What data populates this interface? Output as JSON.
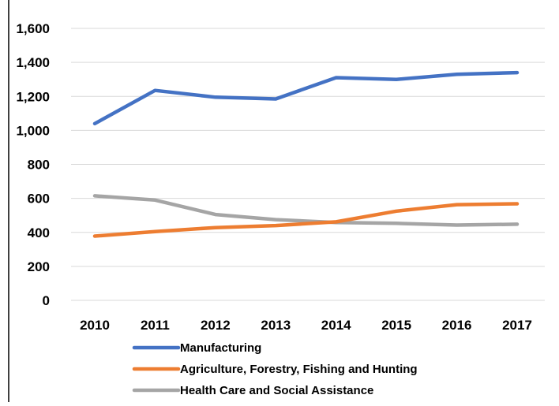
{
  "chart_data": {
    "type": "line",
    "title": "",
    "xlabel": "",
    "ylabel": "",
    "x": [
      "2010",
      "2011",
      "2012",
      "2013",
      "2014",
      "2015",
      "2016",
      "2017"
    ],
    "ylim": [
      0,
      1600
    ],
    "yticks": [
      "0",
      "200",
      "400",
      "600",
      "800",
      "1,000",
      "1,200",
      "1,400",
      "1,600"
    ],
    "grid": true,
    "legend_position": "bottom",
    "series": [
      {
        "name": "Manufacturing",
        "color": "#4472C4",
        "values": [
          1040,
          1235,
          1195,
          1185,
          1310,
          1300,
          1330,
          1340
        ]
      },
      {
        "name": "Agriculture, Forestry, Fishing and Hunting",
        "color": "#ED7D31",
        "values": [
          378,
          405,
          428,
          440,
          462,
          525,
          563,
          568
        ]
      },
      {
        "name": "Health Care and Social Assistance",
        "color": "#A5A5A5",
        "values": [
          615,
          590,
          505,
          475,
          458,
          453,
          443,
          448
        ]
      }
    ]
  }
}
